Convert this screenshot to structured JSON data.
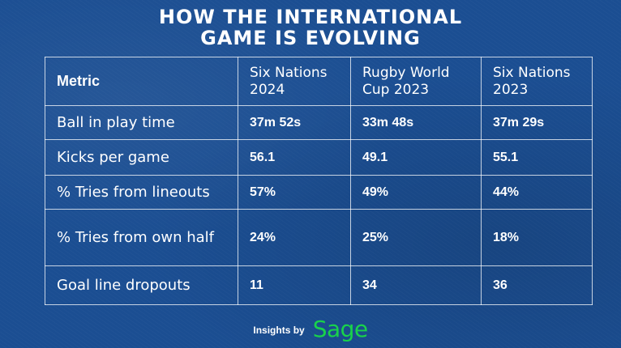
{
  "title": {
    "line1": "HOW THE INTERNATIONAL",
    "line2": "GAME IS EVOLVING"
  },
  "table": {
    "headers": [
      "Metric",
      "Six Nations 2024",
      "Rugby World Cup 2023",
      "Six Nations 2023"
    ],
    "rows": [
      [
        "Ball in play time",
        "37m 52s",
        "33m 48s",
        "37m 29s"
      ],
      [
        "Kicks per game",
        "56.1",
        "49.1",
        "55.1"
      ],
      [
        "% Tries from lineouts",
        "57%",
        "49%",
        "44%"
      ],
      [
        "% Tries from own half",
        "24%",
        "25%",
        "18%"
      ],
      [
        "Goal line dropouts",
        "11",
        "34",
        "36"
      ]
    ]
  },
  "footer": {
    "insights": "Insights by",
    "brand": "Sage"
  },
  "colors": {
    "background": "#1b4e92",
    "brand_green": "#19d24b",
    "text": "#ffffff"
  }
}
